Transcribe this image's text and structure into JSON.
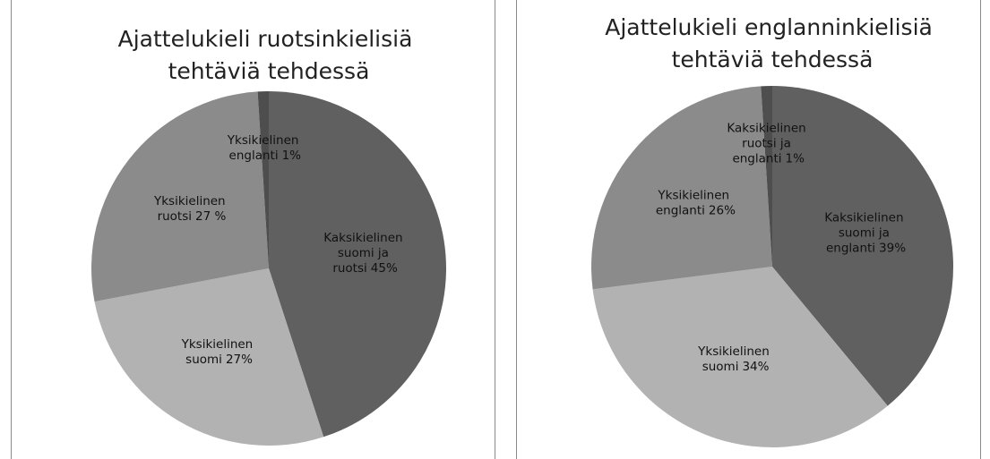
{
  "chart_data": [
    {
      "type": "pie",
      "title": "Ajattelukieli ruotsinkielisiä tehtäviä tehdessä",
      "categories": [
        "Kaksikielinen suomi ja ruotsi",
        "Yksikielinen suomi",
        "Yksikielinen ruotsi",
        "Yksikielinen englanti"
      ],
      "values": [
        45,
        27,
        27,
        1
      ],
      "value_labels": [
        "45%",
        "27%",
        "27 %",
        "1%"
      ],
      "colors": [
        "#606060",
        "#b2b2b2",
        "#8b8b8b",
        "#4e4e4e"
      ]
    },
    {
      "type": "pie",
      "title": "Ajattelukieli englanninkielisiä tehtäviä tehdessä",
      "categories": [
        "Kaksikielinen suomi ja englanti",
        "Yksikielinen suomi",
        "Yksikielinen englanti",
        "Kaksikielinen ruotsi ja englanti"
      ],
      "values": [
        39,
        34,
        26,
        1
      ],
      "value_labels": [
        "39%",
        "34%",
        "26%",
        "1%"
      ],
      "colors": [
        "#606060",
        "#b2b2b2",
        "#8b8b8b",
        "#4e4e4e"
      ]
    }
  ]
}
